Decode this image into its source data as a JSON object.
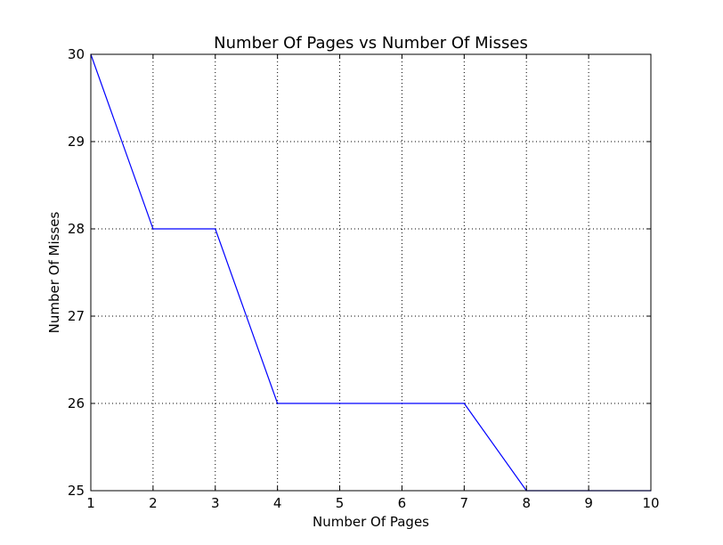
{
  "chart_data": {
    "type": "line",
    "title": "Number Of Pages vs Number Of Misses",
    "xlabel": "Number Of Pages",
    "ylabel": "Number Of Misses",
    "x": [
      1,
      2,
      3,
      4,
      5,
      6,
      7,
      8,
      9,
      10
    ],
    "series": [
      {
        "values": [
          30,
          28,
          28,
          26,
          26,
          26,
          26,
          25,
          25,
          25
        ]
      }
    ],
    "xlim": [
      1,
      10
    ],
    "ylim": [
      25,
      30
    ],
    "xticks": [
      "1",
      "2",
      "3",
      "4",
      "5",
      "6",
      "7",
      "8",
      "9",
      "10"
    ],
    "yticks": [
      "25",
      "26",
      "27",
      "28",
      "29",
      "30"
    ],
    "grid": true,
    "legend": false
  },
  "colors": {
    "line": "#0000ff",
    "grid": "#000000",
    "axes": "#000000",
    "background": "#ffffff"
  }
}
